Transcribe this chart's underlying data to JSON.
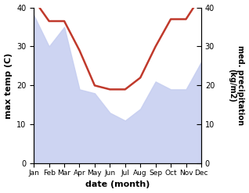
{
  "months": [
    "Jan",
    "Feb",
    "Mar",
    "Apr",
    "May",
    "Jun",
    "Jul",
    "Aug",
    "Sep",
    "Oct",
    "Nov",
    "Dec"
  ],
  "temperature": [
    42,
    36.5,
    36.5,
    29,
    20,
    19,
    19,
    22,
    30,
    37,
    37,
    43
  ],
  "precipitation": [
    38,
    30,
    35,
    19,
    18,
    13,
    11,
    14,
    21,
    19,
    19,
    26
  ],
  "temp_color": "#c0392b",
  "precip_fill_color": "#c5cdf0",
  "precip_alpha": 0.85,
  "temp_ylim": [
    0,
    40
  ],
  "precip_ylim": [
    0,
    40
  ],
  "temp_yticks": [
    0,
    10,
    20,
    30,
    40
  ],
  "precip_yticks": [
    0,
    10,
    20,
    30,
    40
  ],
  "xlabel": "date (month)",
  "ylabel_left": "max temp (C)",
  "ylabel_right": "med. precipitation\n(kg/m2)",
  "temp_linewidth": 1.8,
  "background_color": "#ffffff"
}
